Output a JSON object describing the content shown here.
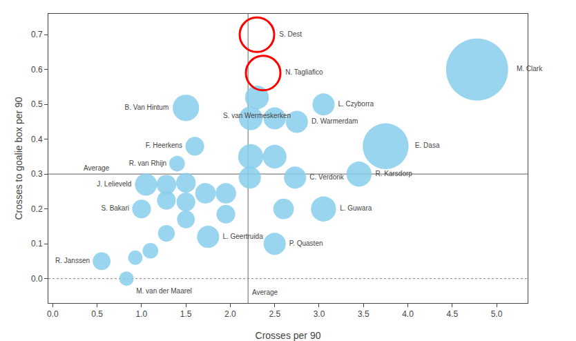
{
  "chart_data": {
    "type": "bubble",
    "xlabel": "Crosses per 90",
    "ylabel": "Crosses to goalie box per 90",
    "xlim": [
      -0.05,
      5.35
    ],
    "ylim": [
      -0.07,
      0.76
    ],
    "xticks": [
      {
        "value": 0,
        "label": "0.0"
      },
      0.5,
      {
        "value": 1,
        "label": "1.0"
      },
      1.5,
      {
        "value": 2,
        "label": "2.0"
      },
      2.5,
      {
        "value": 3,
        "label": "3.0"
      },
      3.5,
      {
        "value": 4,
        "label": "4.0"
      },
      4.5,
      {
        "value": 5,
        "label": "5.0"
      }
    ],
    "yticks": [
      {
        "value": 0,
        "label": "0.0"
      },
      0.1,
      0.2,
      0.3,
      0.4,
      0.5,
      0.6,
      0.7
    ],
    "grid": false,
    "series": [
      {
        "color": "#87CEEB",
        "marker": "circle",
        "x": [
          2.3,
          3.05,
          2.75,
          1.5,
          1.6,
          1.4,
          3.75,
          3.45,
          4.78,
          2.73,
          1.05,
          1.0,
          3.05,
          1.75,
          2.5,
          0.55,
          0.83,
          2.23,
          2.5,
          2.23,
          2.5,
          1.28,
          1.5,
          1.28,
          1.5,
          1.72,
          1.95,
          1.95,
          1.5,
          1.28,
          1.1,
          0.93,
          2.22,
          2.6
        ],
        "y": [
          0.52,
          0.5,
          0.45,
          0.49,
          0.38,
          0.33,
          0.38,
          0.3,
          0.6,
          0.29,
          0.27,
          0.2,
          0.2,
          0.12,
          0.1,
          0.05,
          0.0,
          0.35,
          0.35,
          0.46,
          0.46,
          0.27,
          0.275,
          0.225,
          0.22,
          0.245,
          0.245,
          0.185,
          0.17,
          0.13,
          0.08,
          0.06,
          0.29,
          0.2
        ],
        "sizes": [
          800,
          700,
          700,
          1000,
          500,
          350,
          3000,
          900,
          5500,
          700,
          700,
          500,
          900,
          700,
          700,
          450,
          300,
          900,
          800,
          800,
          700,
          550,
          550,
          500,
          500,
          600,
          600,
          500,
          450,
          400,
          350,
          300,
          700,
          600
        ],
        "labels": [
          "S. van Wermeskerken",
          "L. Czyborra",
          "D. Warmerdam",
          "B. Van Hintum",
          "F. Heerkens",
          "R. van Rhijn",
          "E. Dasa",
          "R. Karsdorp",
          "M. Clark",
          "C. Verdonk",
          "J. Lelieveld",
          "S. Bakari",
          "L. Guwara",
          "L. Geertruida",
          "P. Quasten",
          "R. Janssen",
          "M. van der Maarel",
          null,
          null,
          null,
          null,
          null,
          null,
          null,
          null,
          null,
          null,
          null,
          null,
          null,
          null,
          null,
          null,
          null
        ]
      },
      {
        "color": "#ff0000",
        "marker": "circle-open",
        "x": [
          2.3,
          2.37
        ],
        "y": [
          0.7,
          0.59
        ],
        "labels": [
          "S. Dest",
          "N. Tagliafico"
        ]
      }
    ],
    "reference_lines": [
      {
        "axis": "x",
        "value": 2.2,
        "label": "Average",
        "line_style": "solid"
      },
      {
        "axis": "y",
        "value": 0.3,
        "label": "Average",
        "line_style": "solid"
      },
      {
        "axis": "y",
        "value": 0.0,
        "line_style": "dotted"
      }
    ]
  }
}
